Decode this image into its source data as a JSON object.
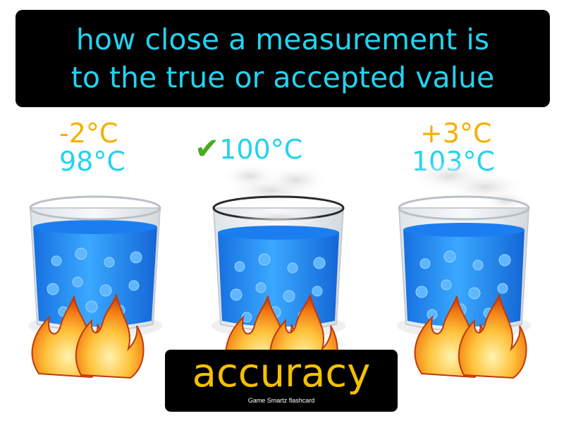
{
  "definition": {
    "line1": "how close a measurement is",
    "line2": "to the true or accepted value"
  },
  "readings": [
    {
      "offset": "-2°C",
      "value": "98°C"
    },
    {
      "value": "100°C",
      "check_icon": "checkmark-icon"
    },
    {
      "offset": "+3°C",
      "value": "103°C"
    }
  ],
  "term": "accuracy",
  "credit": "Game Smartz flashcard",
  "colors": {
    "background": "#ffffff",
    "box": "#000000",
    "definition_text": "#22d3f0",
    "offset_text": "#f5b000",
    "value_text": "#22d3f0",
    "check": "#4caa22",
    "term_text": "#f5c000",
    "water": "#1e90ff"
  }
}
